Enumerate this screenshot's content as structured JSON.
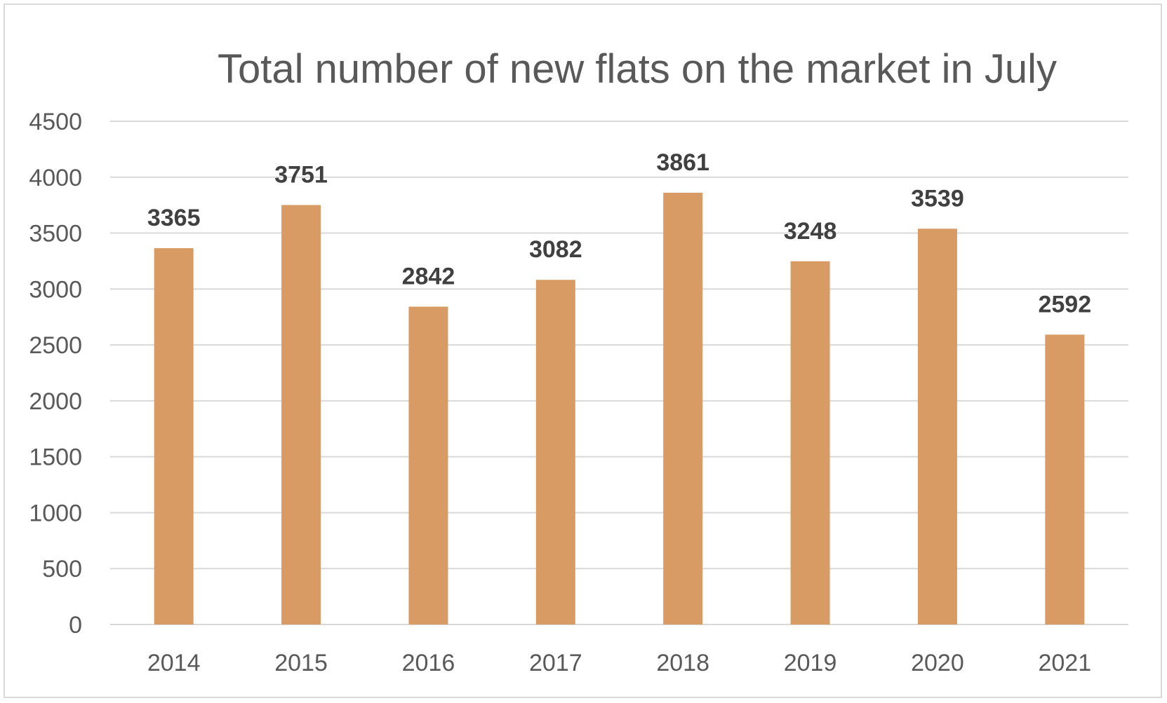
{
  "chart_data": {
    "type": "bar",
    "title": "Total number of new flats on the market in July",
    "xlabel": "",
    "ylabel": "",
    "categories": [
      "2014",
      "2015",
      "2016",
      "2017",
      "2018",
      "2019",
      "2020",
      "2021"
    ],
    "values": [
      3365,
      3751,
      2842,
      3082,
      3861,
      3248,
      3539,
      2592
    ],
    "ylim": [
      0,
      4500
    ],
    "yticks": [
      0,
      500,
      1000,
      1500,
      2000,
      2500,
      3000,
      3500,
      4000,
      4500
    ],
    "grid": true,
    "legend": "none",
    "data_labels": true,
    "colors": {
      "bar": "#d79b63",
      "grid": "#d9d9d9",
      "axis_text": "#595959",
      "data_label": "#404040",
      "frame": "#d9d9d9"
    }
  }
}
